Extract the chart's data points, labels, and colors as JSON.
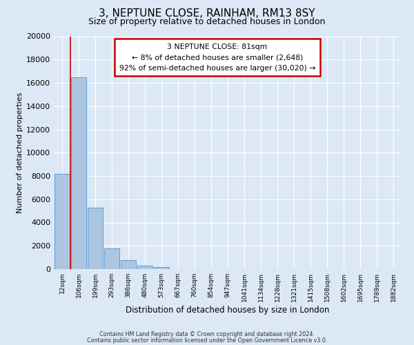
{
  "title": "3, NEPTUNE CLOSE, RAINHAM, RM13 8SY",
  "subtitle": "Size of property relative to detached houses in London",
  "xlabel": "Distribution of detached houses by size in London",
  "ylabel": "Number of detached properties",
  "categories": [
    "12sqm",
    "106sqm",
    "199sqm",
    "293sqm",
    "386sqm",
    "480sqm",
    "573sqm",
    "667sqm",
    "760sqm",
    "854sqm",
    "947sqm",
    "1041sqm",
    "1134sqm",
    "1228sqm",
    "1321sqm",
    "1415sqm",
    "1508sqm",
    "1602sqm",
    "1695sqm",
    "1789sqm",
    "1882sqm"
  ],
  "values": [
    8200,
    16500,
    5300,
    1750,
    750,
    300,
    200,
    0,
    0,
    0,
    0,
    0,
    0,
    0,
    0,
    0,
    0,
    0,
    0,
    0,
    0
  ],
  "bar_color": "#adc6e0",
  "bar_edge_color": "#5b9bd5",
  "background_color": "#dce8f5",
  "plot_bg_color": "#dce8f5",
  "grid_color": "#ffffff",
  "ylim": [
    0,
    20000
  ],
  "yticks": [
    0,
    2000,
    4000,
    6000,
    8000,
    10000,
    12000,
    14000,
    16000,
    18000,
    20000
  ],
  "red_line_x": 0.5,
  "annotation_line1": "3 NEPTUNE CLOSE: 81sqm",
  "annotation_line2": "← 8% of detached houses are smaller (2,648)",
  "annotation_line3": "92% of semi-detached houses are larger (30,020) →",
  "annotation_box_color": "#ffffff",
  "annotation_box_edge_color": "#cc0000",
  "footer_line1": "Contains HM Land Registry data © Crown copyright and database right 2024.",
  "footer_line2": "Contains public sector information licensed under the Open Government Licence v3.0.",
  "title_fontsize": 11,
  "subtitle_fontsize": 9
}
